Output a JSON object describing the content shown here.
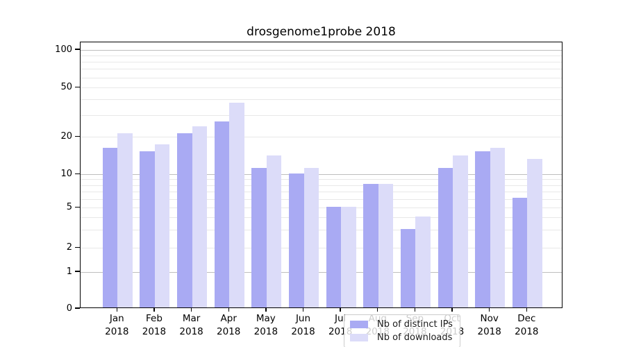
{
  "title": "drosgenome1probe 2018",
  "chart_data": {
    "type": "bar",
    "title": "drosgenome1probe 2018",
    "categories": [
      "Jan 2018",
      "Feb 2018",
      "Mar 2018",
      "Apr 2018",
      "May 2018",
      "Jun 2018",
      "Jul 2018",
      "Aug 2018",
      "Sep 2018",
      "Oct 2018",
      "Nov 2018",
      "Dec 2018"
    ],
    "series": [
      {
        "name": "Nb of distinct IPs",
        "color": "#a9aaf3",
        "values": [
          16,
          15,
          21,
          26,
          11,
          10,
          5,
          8,
          3,
          11,
          15,
          6
        ]
      },
      {
        "name": "Nb of downloads",
        "color": "#dcdcf9",
        "values": [
          21,
          17,
          24,
          37,
          14,
          11,
          5,
          8,
          4,
          14,
          16,
          13
        ]
      }
    ],
    "xlabel": "",
    "ylabel": "",
    "y_axis": {
      "scale": "log (compressed below 10, linear 0-1)",
      "labeled_ticks": [
        0,
        1,
        2,
        5,
        10,
        20,
        50,
        100
      ],
      "minor_gridlines": [
        3,
        4,
        6,
        7,
        8,
        9,
        30,
        40,
        60,
        70,
        80,
        90
      ],
      "major_gridlines": [
        1,
        10,
        100
      ],
      "ylim": [
        0,
        110
      ]
    },
    "legend": {
      "position": "lower center",
      "entries": [
        "Nb of distinct IPs",
        "Nb of downloads"
      ]
    },
    "grid": true
  },
  "colors": {
    "bar_distinct_ips": "#a9aaf3",
    "bar_downloads": "#dcdcf9",
    "gridline_minor": "#e8e8e8",
    "gridline_major": "#bdbdbd",
    "spine": "#000000",
    "legend_border": "#cccccc"
  }
}
